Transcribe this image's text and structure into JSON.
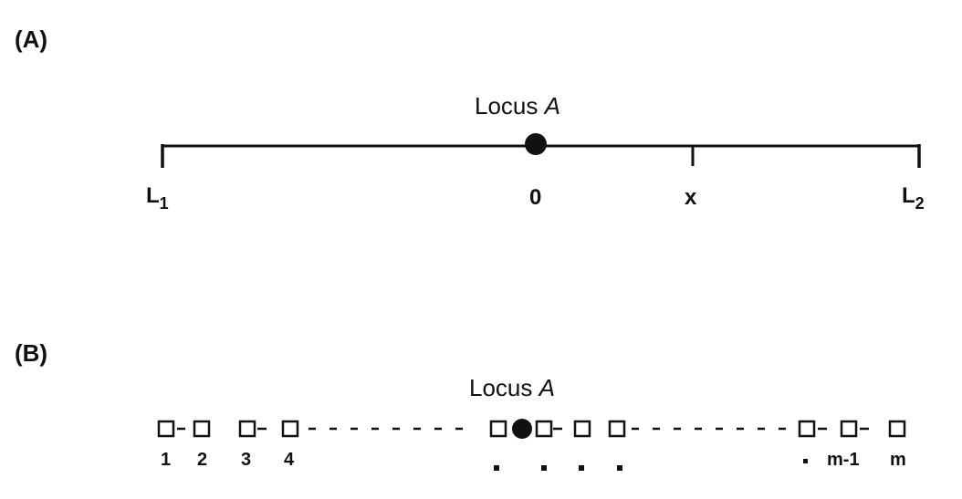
{
  "panel_a": {
    "label": "(A)",
    "title": "Locus ",
    "title_italic": "A",
    "left_end": "L",
    "left_end_sub": "1",
    "right_end": "L",
    "right_end_sub": "2",
    "center_label": "0",
    "x_label": "x"
  },
  "panel_b": {
    "label": "(B)",
    "title": "Locus ",
    "title_italic": "A",
    "marker_labels": [
      "1",
      "2",
      "3",
      "4",
      "m-1",
      "m"
    ]
  }
}
